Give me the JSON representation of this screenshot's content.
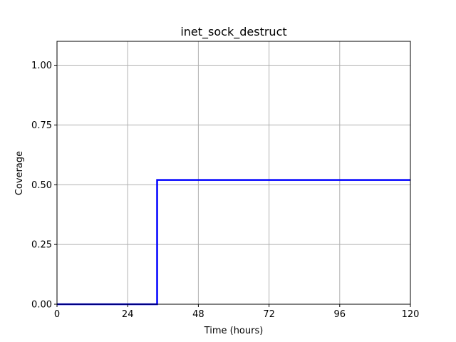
{
  "chart_data": {
    "type": "line",
    "title": "inet_sock_destruct",
    "xlabel": "Time (hours)",
    "ylabel": "Coverage",
    "xlim": [
      0,
      120
    ],
    "ylim": [
      0,
      1.1
    ],
    "xticks": [
      0,
      24,
      48,
      72,
      96,
      120
    ],
    "xtick_labels": [
      "0",
      "24",
      "48",
      "72",
      "96",
      "120"
    ],
    "yticks": [
      0,
      0.25,
      0.5,
      0.75,
      1.0
    ],
    "ytick_labels": [
      "0.00",
      "0.25",
      "0.50",
      "0.75",
      "1.00"
    ],
    "grid": true,
    "series": [
      {
        "color": "#0000ff",
        "step": "post",
        "x": [
          0,
          34,
          120
        ],
        "y": [
          0.0,
          0.52,
          0.52
        ]
      }
    ]
  }
}
